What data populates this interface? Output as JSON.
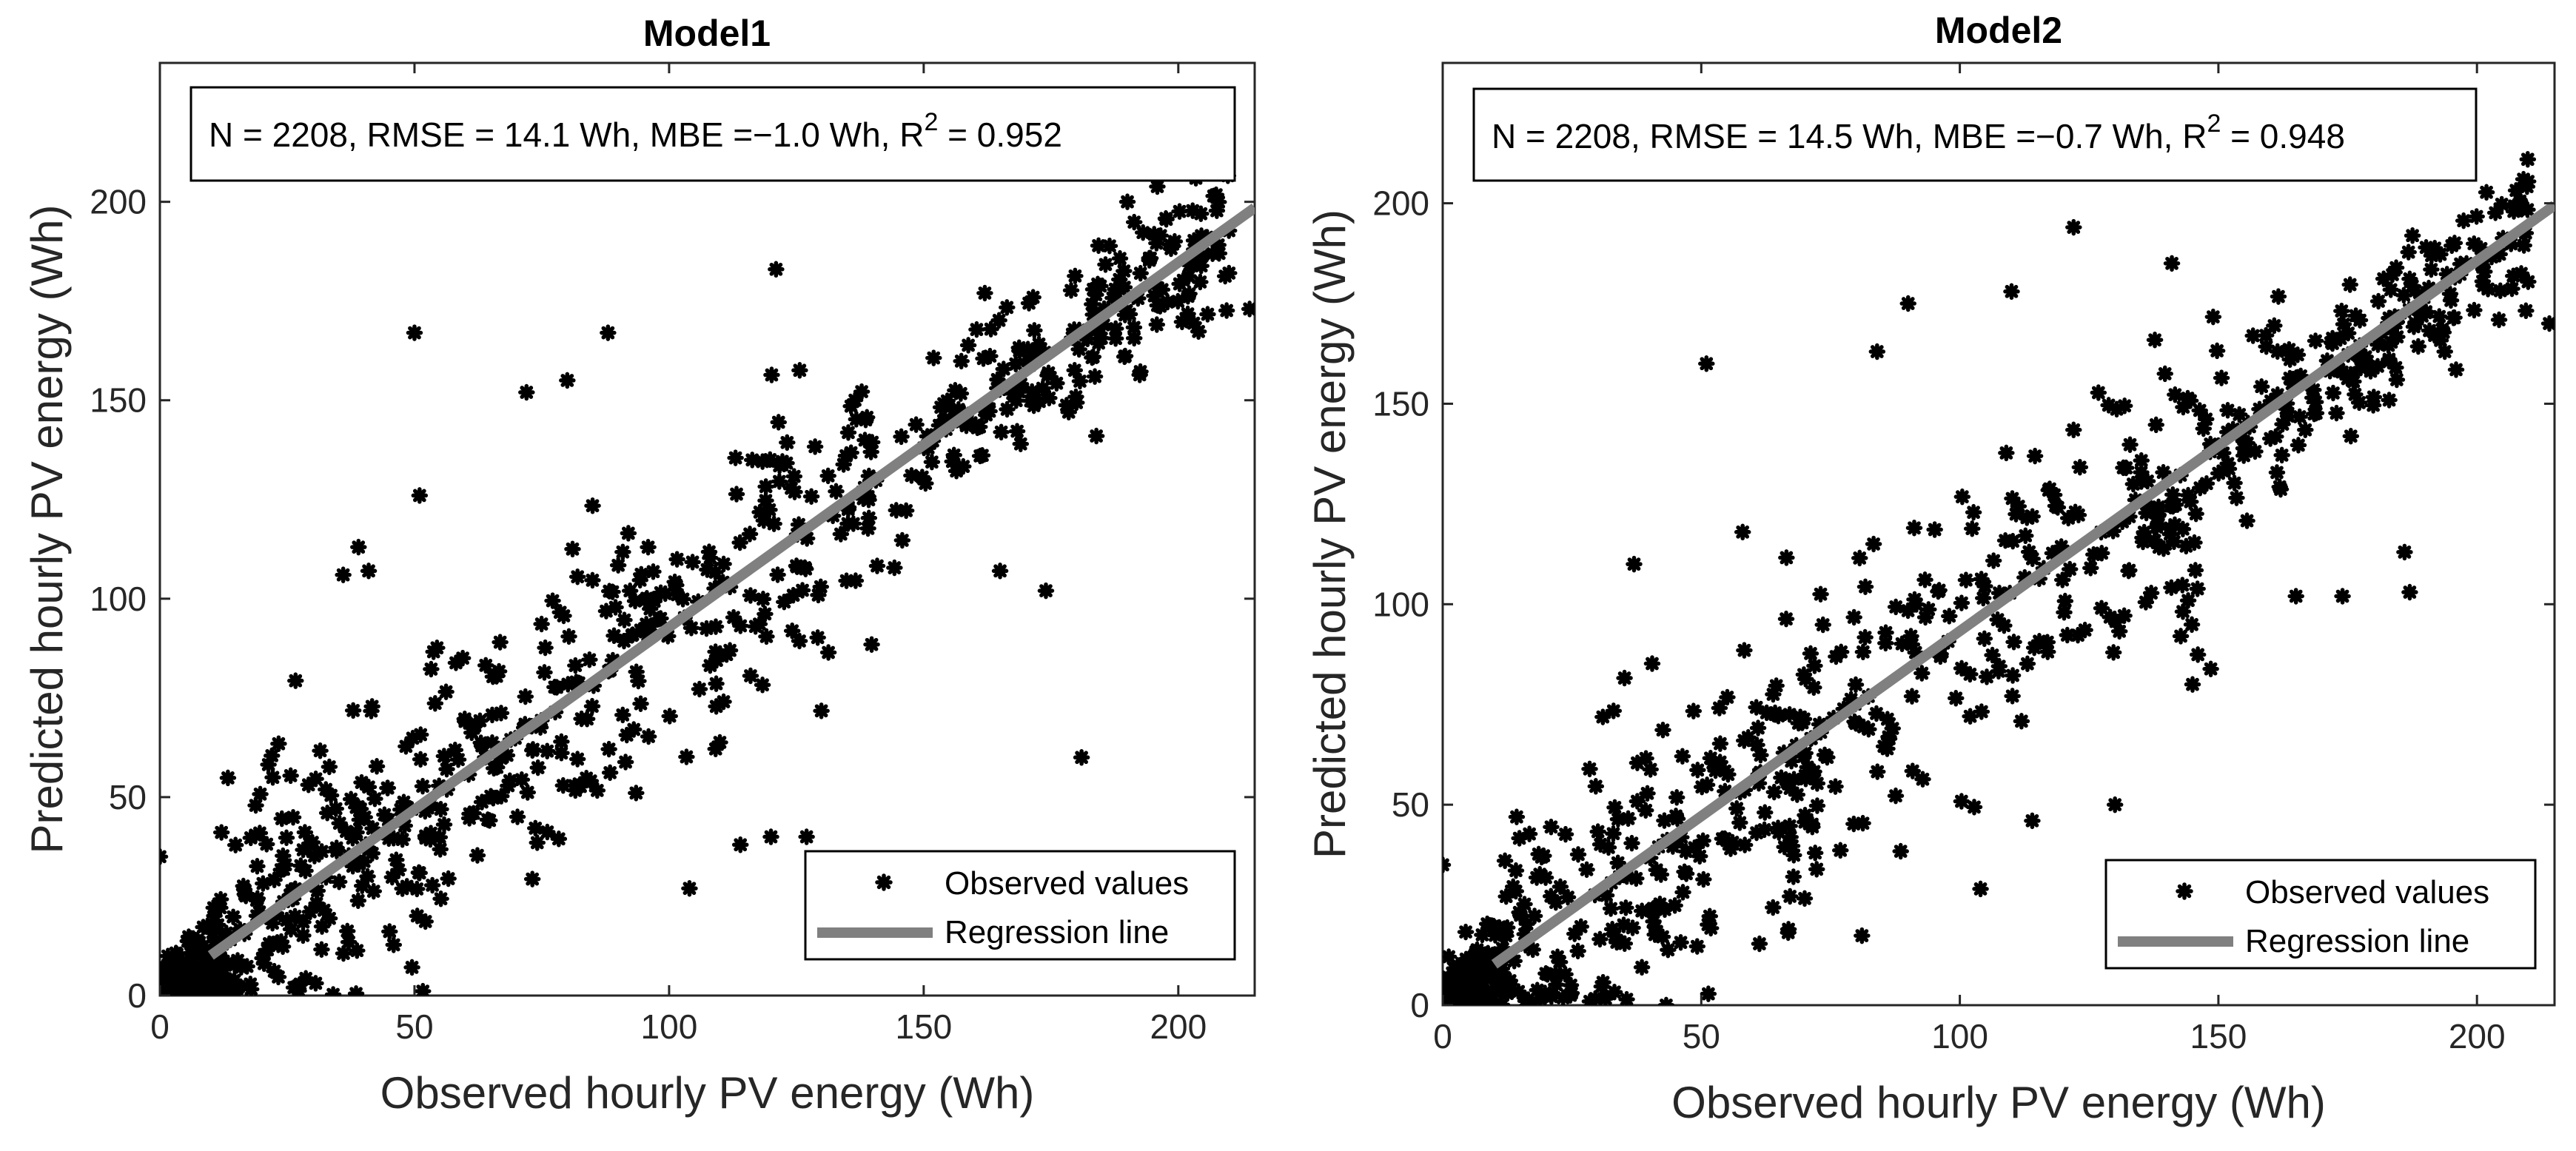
{
  "figure": {
    "panels": [
      "Model1",
      "Model2"
    ]
  },
  "colors": {
    "marker": "#000000",
    "regression": "#808080",
    "axes": "#262626",
    "background": "#ffffff"
  },
  "chart_data": [
    {
      "type": "scatter",
      "title": "Model1",
      "xlabel": "Observed hourly PV energy (Wh)",
      "ylabel": "Predicted hourly PV energy (Wh)",
      "xlim": [
        0,
        215
      ],
      "ylim": [
        0,
        235
      ],
      "xticks": [
        0,
        50,
        100,
        150,
        200
      ],
      "yticks": [
        0,
        50,
        100,
        150,
        200
      ],
      "stats_text": "N = 2208, RMSE = 14.1 Wh, MBE =−1.0 Wh, R",
      "stats_sup": "2",
      "stats_tail": " = 0.952",
      "stats": {
        "N": 2208,
        "RMSE_Wh": 14.1,
        "MBE_Wh": -1.0,
        "R2": 0.952
      },
      "legend": {
        "position": "bottom-right",
        "entries": [
          "Observed values",
          "Regression line"
        ]
      },
      "regression": {
        "x": [
          10,
          215
        ],
        "y": [
          10.1,
          198.5
        ]
      },
      "highlight_points": [
        [
          50,
          167
        ],
        [
          88,
          167
        ],
        [
          121,
          183
        ],
        [
          72,
          152
        ],
        [
          80,
          155
        ],
        [
          36,
          106
        ],
        [
          41,
          107
        ],
        [
          39,
          113
        ],
        [
          104,
          27
        ],
        [
          114,
          38
        ],
        [
          120,
          40
        ],
        [
          127,
          40
        ],
        [
          181,
          60
        ],
        [
          174,
          102
        ],
        [
          165,
          107
        ],
        [
          51,
          126
        ],
        [
          208,
          187
        ],
        [
          214,
          173
        ],
        [
          0,
          35
        ],
        [
          162,
          177
        ],
        [
          190,
          200
        ]
      ],
      "cloud": {
        "n": 2208,
        "seed": 7,
        "bias": -1.0,
        "noise_near_zero": 3,
        "noise_mid": 18,
        "noise_high": 10
      }
    },
    {
      "type": "scatter",
      "title": "Model2",
      "xlabel": "Observed hourly PV energy (Wh)",
      "ylabel": "Predicted hourly PV energy (Wh)",
      "xlim": [
        0,
        215
      ],
      "ylim": [
        0,
        235
      ],
      "xticks": [
        0,
        50,
        100,
        150,
        200
      ],
      "yticks": [
        0,
        50,
        100,
        150,
        200
      ],
      "stats_text": "N = 2208, RMSE = 14.5 Wh, MBE =−0.7 Wh, R",
      "stats_sup": "2",
      "stats_tail": " = 0.948",
      "stats": {
        "N": 2208,
        "RMSE_Wh": 14.5,
        "MBE_Wh": -0.7,
        "R2": 0.948
      },
      "legend": {
        "position": "bottom-right",
        "entries": [
          "Observed values",
          "Regression line"
        ]
      },
      "regression": {
        "x": [
          10,
          215
        ],
        "y": [
          10.2,
          199.5
        ]
      },
      "highlight_points": [
        [
          51,
          160
        ],
        [
          90,
          175
        ],
        [
          84,
          163
        ],
        [
          122,
          194
        ],
        [
          141,
          185
        ],
        [
          110,
          178
        ],
        [
          104,
          29
        ],
        [
          114,
          46
        ],
        [
          130,
          50
        ],
        [
          174,
          102
        ],
        [
          165,
          102
        ],
        [
          187,
          103
        ],
        [
          214,
          170
        ],
        [
          0,
          35
        ],
        [
          37,
          110
        ],
        [
          209,
          206
        ],
        [
          186,
          113
        ],
        [
          145,
          80
        ],
        [
          58,
          118
        ]
      ],
      "cloud": {
        "n": 2208,
        "seed": 11,
        "bias": -0.7,
        "noise_near_zero": 3,
        "noise_mid": 19,
        "noise_high": 10
      }
    }
  ]
}
